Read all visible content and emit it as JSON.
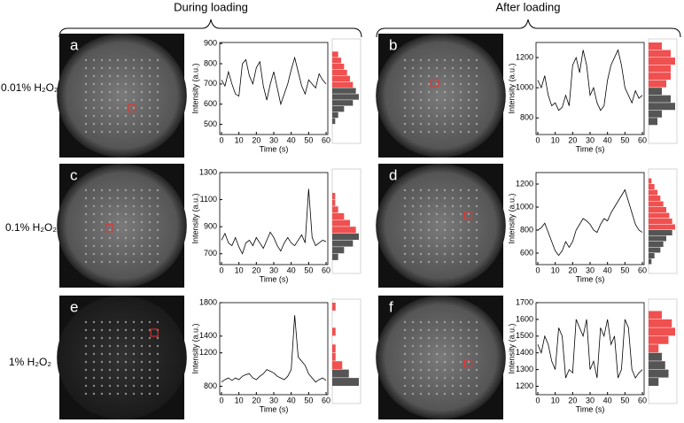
{
  "headers": [
    "During loading",
    "After loading"
  ],
  "row_labels": [
    "0.01% H₂O₂",
    "0.1% H₂O₂",
    "1% H₂O₂"
  ],
  "chart_data": [
    {
      "type": "line",
      "panel": "a",
      "x_label": "Time (s)",
      "y_label": "Intensity (a.u.)",
      "color": "#000000",
      "x": [
        0,
        2,
        4,
        6,
        8,
        10,
        12,
        14,
        16,
        18,
        20,
        22,
        24,
        26,
        28,
        30,
        32,
        34,
        36,
        38,
        40,
        42,
        44,
        46,
        48,
        50,
        52,
        54,
        56,
        58,
        60
      ],
      "values": [
        720,
        690,
        760,
        700,
        650,
        640,
        800,
        820,
        740,
        700,
        780,
        810,
        690,
        620,
        700,
        760,
        680,
        600,
        650,
        700,
        770,
        830,
        760,
        690,
        650,
        720,
        700,
        680,
        750,
        720,
        700
      ],
      "xlim": [
        -1,
        61
      ],
      "xticks": [
        0,
        10,
        20,
        30,
        40,
        50,
        60
      ],
      "ylim": [
        450,
        905
      ],
      "yticks": [
        500,
        600,
        700,
        800,
        900
      ],
      "histogram": {
        "bins": [
          500,
          530,
          560,
          590,
          620,
          650,
          680,
          710,
          740,
          770,
          800,
          830,
          860
        ],
        "counts": [
          1,
          2,
          4,
          7,
          9,
          8,
          7,
          6,
          5,
          4,
          3,
          2
        ],
        "colors": [
          "#555555",
          "#555555",
          "#555555",
          "#555555",
          "#555555",
          "#555555",
          "#f05050",
          "#f05050",
          "#f05050",
          "#f05050",
          "#f05050",
          "#f05050"
        ]
      }
    },
    {
      "type": "line",
      "panel": "b",
      "x_label": "Time (s)",
      "y_label": "Intensity (a.u.)",
      "color": "#000000",
      "x": [
        0,
        2,
        4,
        6,
        8,
        10,
        12,
        14,
        16,
        18,
        20,
        22,
        24,
        26,
        28,
        30,
        32,
        34,
        36,
        38,
        40,
        42,
        44,
        46,
        48,
        50,
        52,
        54,
        56,
        58,
        60
      ],
      "values": [
        1050,
        1000,
        1080,
        950,
        880,
        900,
        850,
        870,
        950,
        880,
        1150,
        1200,
        1100,
        1250,
        1150,
        950,
        1000,
        900,
        850,
        880,
        1050,
        1150,
        1200,
        1250,
        1150,
        1000,
        950,
        900,
        980,
        930,
        950
      ],
      "xlim": [
        -1,
        61
      ],
      "xticks": [
        0,
        10,
        20,
        30,
        40,
        50,
        60
      ],
      "ylim": [
        690,
        1300
      ],
      "yticks": [
        800,
        1000,
        1200
      ],
      "histogram": {
        "bins": [
          750,
          800,
          850,
          900,
          950,
          1000,
          1050,
          1100,
          1150,
          1200,
          1250,
          1300
        ],
        "counts": [
          2,
          3,
          6,
          5,
          3,
          4,
          5,
          5,
          6,
          5,
          3
        ],
        "colors": [
          "#555555",
          "#555555",
          "#555555",
          "#555555",
          "#555555",
          "#f05050",
          "#f05050",
          "#f05050",
          "#f05050",
          "#f05050",
          "#f05050"
        ]
      }
    },
    {
      "type": "line",
      "panel": "c",
      "x_label": "Time (s)",
      "y_label": "Intensity (a.u.)",
      "color": "#000000",
      "x": [
        0,
        2,
        4,
        6,
        8,
        10,
        12,
        14,
        16,
        18,
        20,
        22,
        24,
        26,
        28,
        30,
        32,
        34,
        36,
        38,
        40,
        42,
        44,
        46,
        48,
        50,
        52,
        54,
        56,
        58,
        60
      ],
      "values": [
        800,
        850,
        780,
        760,
        820,
        750,
        700,
        780,
        800,
        760,
        820,
        780,
        740,
        800,
        860,
        820,
        760,
        720,
        780,
        820,
        780,
        760,
        800,
        840,
        780,
        1180,
        820,
        760,
        780,
        800,
        790
      ],
      "xlim": [
        -1,
        61
      ],
      "xticks": [
        0,
        10,
        20,
        30,
        40,
        50,
        60
      ],
      "ylim": [
        620,
        1300
      ],
      "yticks": [
        700,
        900,
        1100,
        1300
      ],
      "histogram": {
        "bins": [
          650,
          700,
          750,
          800,
          850,
          900,
          950,
          1000,
          1050,
          1100,
          1150,
          1200,
          1250,
          1300
        ],
        "counts": [
          2,
          4,
          7,
          9,
          8,
          6,
          4,
          2,
          1,
          1,
          0,
          0,
          0
        ],
        "colors": [
          "#555555",
          "#555555",
          "#555555",
          "#555555",
          "#f05050",
          "#f05050",
          "#f05050",
          "#f05050",
          "#f05050",
          "#f05050",
          "#f05050",
          "#f05050",
          "#f05050"
        ]
      }
    },
    {
      "type": "line",
      "panel": "d",
      "x_label": "Time (s)",
      "y_label": "Intensity (a.u.)",
      "color": "#000000",
      "x": [
        0,
        2,
        4,
        6,
        8,
        10,
        12,
        14,
        16,
        18,
        20,
        22,
        24,
        26,
        28,
        30,
        32,
        34,
        36,
        38,
        40,
        42,
        44,
        46,
        48,
        50,
        52,
        54,
        56,
        58,
        60
      ],
      "values": [
        800,
        820,
        860,
        780,
        700,
        620,
        580,
        620,
        700,
        650,
        700,
        800,
        850,
        900,
        880,
        850,
        800,
        780,
        850,
        900,
        880,
        950,
        1000,
        1050,
        1100,
        1150,
        1050,
        950,
        850,
        800,
        780
      ],
      "xlim": [
        -1,
        61
      ],
      "xticks": [
        0,
        10,
        20,
        30,
        40,
        50,
        60
      ],
      "ylim": [
        500,
        1300
      ],
      "yticks": [
        600,
        800,
        1000,
        1200
      ],
      "histogram": {
        "bins": [
          500,
          550,
          600,
          650,
          700,
          750,
          800,
          850,
          900,
          950,
          1000,
          1050,
          1100,
          1150,
          1200,
          1250
        ],
        "counts": [
          1,
          2,
          4,
          5,
          6,
          8,
          9,
          8,
          7,
          6,
          5,
          4,
          3,
          2,
          1
        ],
        "colors": [
          "#555555",
          "#555555",
          "#555555",
          "#555555",
          "#555555",
          "#555555",
          "#f05050",
          "#f05050",
          "#f05050",
          "#f05050",
          "#f05050",
          "#f05050",
          "#f05050",
          "#f05050",
          "#f05050"
        ]
      }
    },
    {
      "type": "line",
      "panel": "e",
      "x_label": "Time (s)",
      "y_label": "Intensity (a.u.)",
      "color": "#000000",
      "x": [
        0,
        2,
        4,
        6,
        8,
        10,
        12,
        14,
        16,
        18,
        20,
        22,
        24,
        26,
        28,
        30,
        32,
        34,
        36,
        38,
        40,
        42,
        44,
        46,
        48,
        50,
        52,
        54,
        56,
        58,
        60
      ],
      "values": [
        850,
        880,
        900,
        870,
        900,
        880,
        920,
        940,
        950,
        900,
        880,
        920,
        950,
        1000,
        980,
        960,
        920,
        900,
        880,
        920,
        1000,
        1650,
        1150,
        1100,
        1050,
        950,
        900,
        850,
        880,
        900,
        870
      ],
      "xlim": [
        -1,
        61
      ],
      "xticks": [
        0,
        10,
        20,
        30,
        40,
        50,
        60
      ],
      "ylim": [
        700,
        1800
      ],
      "yticks": [
        800,
        1200,
        1400,
        1800
      ],
      "histogram": {
        "bins": [
          800,
          900,
          1000,
          1100,
          1200,
          1300,
          1400,
          1500,
          1600,
          1700,
          1800
        ],
        "counts": [
          8,
          5,
          3,
          1,
          1,
          0,
          1,
          0,
          0,
          1
        ],
        "colors": [
          "#555555",
          "#555555",
          "#f05050",
          "#f05050",
          "#f05050",
          "#f05050",
          "#f05050",
          "#f05050",
          "#f05050",
          "#f05050"
        ]
      }
    },
    {
      "type": "line",
      "panel": "f",
      "x_label": "Time (s)",
      "y_label": "Intensity (a.u.)",
      "color": "#000000",
      "x": [
        0,
        2,
        4,
        6,
        8,
        10,
        12,
        14,
        16,
        18,
        20,
        22,
        24,
        26,
        28,
        30,
        32,
        34,
        36,
        38,
        40,
        42,
        44,
        46,
        48,
        50,
        52,
        54,
        56,
        58,
        60
      ],
      "values": [
        1450,
        1400,
        1500,
        1450,
        1350,
        1300,
        1550,
        1500,
        1250,
        1300,
        1280,
        1600,
        1550,
        1500,
        1600,
        1300,
        1350,
        1250,
        1550,
        1500,
        1600,
        1450,
        1500,
        1250,
        1300,
        1600,
        1550,
        1300,
        1250,
        1280,
        1300
      ],
      "xlim": [
        -1,
        61
      ],
      "xticks": [
        0,
        10,
        20,
        30,
        40,
        50,
        60
      ],
      "ylim": [
        1150,
        1700
      ],
      "yticks": [
        1200,
        1300,
        1400,
        1500,
        1600,
        1700
      ],
      "histogram": {
        "bins": [
          1200,
          1250,
          1300,
          1350,
          1400,
          1450,
          1500,
          1550,
          1600,
          1650
        ],
        "counts": [
          3,
          6,
          5,
          4,
          3,
          6,
          8,
          7,
          4
        ],
        "colors": [
          "#555555",
          "#555555",
          "#555555",
          "#555555",
          "#f05050",
          "#f05050",
          "#f05050",
          "#f05050",
          "#f05050"
        ]
      }
    }
  ]
}
